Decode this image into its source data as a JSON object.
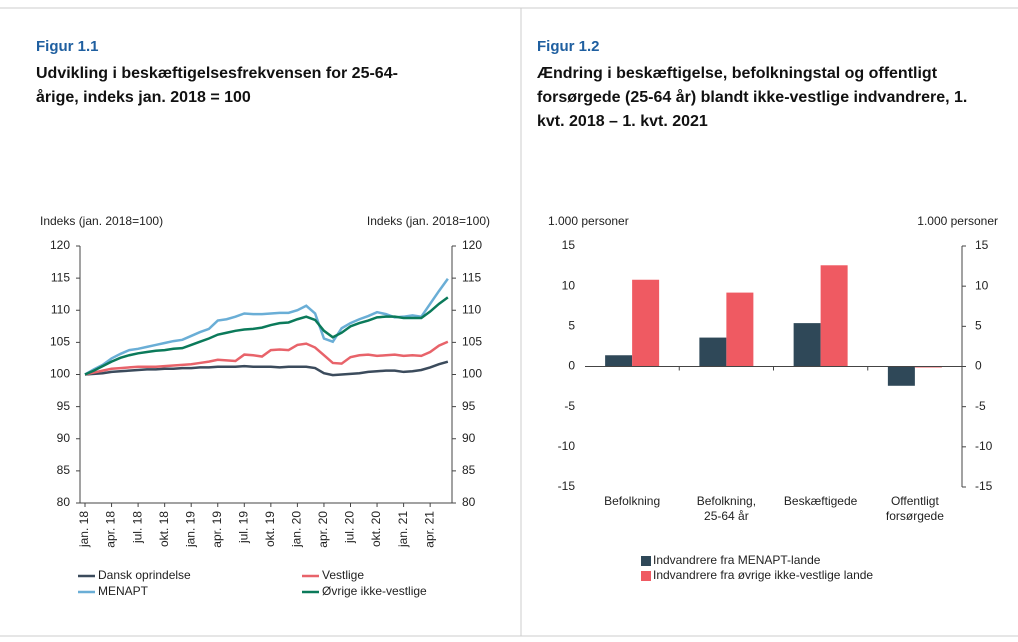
{
  "chart_data": [
    {
      "type": "line",
      "figure_label": "Figur 1.1",
      "title": "Udvikling i beskæftigelsesfrekvensen for 25-64-årige, indeks jan. 2018 = 100",
      "ylabel": "Indeks (jan. 2018=100)",
      "y2label": "Indeks (jan. 2018=100)",
      "categories": [
        "jan. 18",
        null,
        null,
        "apr. 18",
        null,
        null,
        "jul. 18",
        null,
        null,
        "okt. 18",
        null,
        null,
        "jan. 19",
        null,
        null,
        "apr. 19",
        null,
        null,
        "jul. 19",
        null,
        null,
        "okt. 19",
        null,
        null,
        "jan. 20",
        null,
        null,
        "apr. 20",
        null,
        null,
        "jul. 20",
        null,
        null,
        "okt. 20",
        null,
        null,
        "jan. 21",
        null,
        null,
        "apr. 21",
        null,
        null
      ],
      "series": [
        {
          "name": "Dansk oprindelse",
          "color": "#3b4b5c",
          "values": [
            100,
            100.1,
            100.2,
            100.4,
            100.5,
            100.6,
            100.7,
            100.8,
            100.8,
            100.9,
            100.9,
            101.0,
            101.0,
            101.1,
            101.1,
            101.2,
            101.2,
            101.2,
            101.3,
            101.2,
            101.2,
            101.2,
            101.1,
            101.2,
            101.2,
            101.2,
            101.0,
            100.2,
            99.9,
            100.0,
            100.1,
            100.2,
            100.4,
            100.5,
            100.6,
            100.6,
            100.4,
            100.5,
            100.7,
            101.1,
            101.6,
            102.0
          ]
        },
        {
          "name": "Vestlige",
          "color": "#e8636a",
          "values": [
            100,
            100.3,
            100.6,
            100.9,
            101.0,
            101.1,
            101.2,
            101.2,
            101.2,
            101.3,
            101.4,
            101.5,
            101.6,
            101.8,
            102.0,
            102.3,
            102.2,
            102.1,
            103.1,
            103.0,
            102.8,
            103.8,
            103.9,
            103.8,
            104.6,
            104.8,
            104.2,
            103.0,
            101.8,
            101.7,
            102.7,
            103.0,
            103.1,
            102.9,
            103.0,
            103.1,
            102.9,
            103.0,
            102.9,
            103.5,
            104.5,
            105.1
          ]
        },
        {
          "name": "MENAPT",
          "color": "#6aaed6",
          "values": [
            100,
            100.8,
            101.5,
            102.5,
            103.2,
            103.8,
            104.0,
            104.3,
            104.6,
            104.9,
            105.2,
            105.4,
            106.0,
            106.6,
            107.1,
            108.4,
            108.6,
            109.0,
            109.5,
            109.4,
            109.4,
            109.5,
            109.6,
            109.6,
            110.0,
            110.7,
            109.5,
            105.6,
            105.1,
            107.2,
            108.0,
            108.6,
            109.1,
            109.7,
            109.4,
            108.9,
            109.0,
            109.2,
            109.0,
            111.0,
            113.0,
            114.9
          ]
        },
        {
          "name": "Øvrige ikke-vestlige",
          "color": "#0b7a5a",
          "values": [
            100,
            100.6,
            101.3,
            102.0,
            102.6,
            103.0,
            103.3,
            103.5,
            103.7,
            103.8,
            104.0,
            104.1,
            104.6,
            105.1,
            105.6,
            106.2,
            106.5,
            106.8,
            107.0,
            107.1,
            107.3,
            107.7,
            108.0,
            108.1,
            108.6,
            109.0,
            108.5,
            106.8,
            105.8,
            106.5,
            107.5,
            108.0,
            108.4,
            108.9,
            109.0,
            109.0,
            108.8,
            108.8,
            108.8,
            109.8,
            111.0,
            112.0
          ]
        }
      ],
      "ylim": [
        80,
        120
      ],
      "yticks": [
        80,
        85,
        90,
        95,
        100,
        105,
        110,
        115,
        120
      ],
      "y2lim": [
        80,
        120
      ],
      "y2ticks": [
        80,
        85,
        90,
        95,
        100,
        105,
        110,
        115,
        120
      ]
    },
    {
      "type": "bar",
      "figure_label": "Figur 1.2",
      "title": "Ændring i beskæftigelse, befolkningstal og offentligt forsørgede (25-64 år) blandt ikke-vestlige indvandrere, 1. kvt. 2018 – 1. kvt. 2021",
      "ylabel": "1.000 personer",
      "y2label": "1.000 personer",
      "categories": [
        "Befolkning",
        "Befolkning,\n25-64 år",
        "Beskæftigede",
        "Offentligt\nforsørgede"
      ],
      "series": [
        {
          "name": "Indvandrere fra MENAPT-lande",
          "color": "#2f4858",
          "values": [
            1.4,
            3.6,
            5.4,
            -2.4
          ]
        },
        {
          "name": "Indvandrere fra øvrige ikke-vestlige lande",
          "color": "#ef5a62",
          "values": [
            10.8,
            9.2,
            12.6,
            0
          ]
        }
      ],
      "ylim": [
        -15,
        15
      ],
      "yticks": [
        -15,
        -10,
        -5,
        0,
        5,
        10,
        15
      ],
      "y2lim": [
        -15,
        15
      ],
      "y2ticks": [
        -15,
        -10,
        -5,
        0,
        5,
        10,
        15
      ]
    }
  ]
}
